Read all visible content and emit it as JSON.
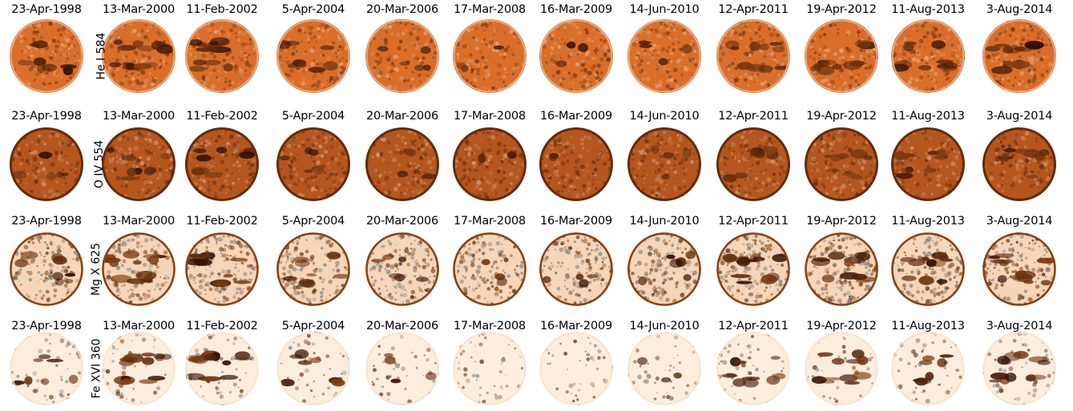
{
  "dates": [
    "23-Apr-1998",
    "13-Mar-2000",
    "11-Feb-2002",
    "5-Apr-2004",
    "20-Mar-2006",
    "17-Mar-2008",
    "16-Mar-2009",
    "14-Jun-2010",
    "12-Apr-2011",
    "19-Apr-2012",
    "11-Aug-2013",
    "3-Aug-2014"
  ],
  "rows": [
    {
      "label": "He I 584",
      "style": "he",
      "activity": [
        0.55,
        0.9,
        0.95,
        0.6,
        0.45,
        0.2,
        0.2,
        0.35,
        0.7,
        0.75,
        0.7,
        0.85
      ]
    },
    {
      "label": "O IV 554",
      "style": "o",
      "activity": [
        0.35,
        0.6,
        0.65,
        0.4,
        0.3,
        0.15,
        0.15,
        0.25,
        0.55,
        0.6,
        0.6,
        0.7
      ]
    },
    {
      "label": "Mg X 625",
      "style": "mg",
      "activity": [
        0.6,
        0.9,
        0.95,
        0.6,
        0.45,
        0.2,
        0.25,
        0.4,
        0.8,
        0.85,
        0.75,
        0.9
      ]
    },
    {
      "label": "Fe XVI 360",
      "style": "fe",
      "activity": [
        0.6,
        0.9,
        1.0,
        0.5,
        0.25,
        0.02,
        0.03,
        0.2,
        0.7,
        0.75,
        0.55,
        0.85
      ]
    }
  ],
  "palette": {
    "bright": "#fff3e6",
    "mid": "#e07a2c",
    "dark": "#2a0a00",
    "base_he": "#d96e2a",
    "base_o": "#b5561e"
  }
}
